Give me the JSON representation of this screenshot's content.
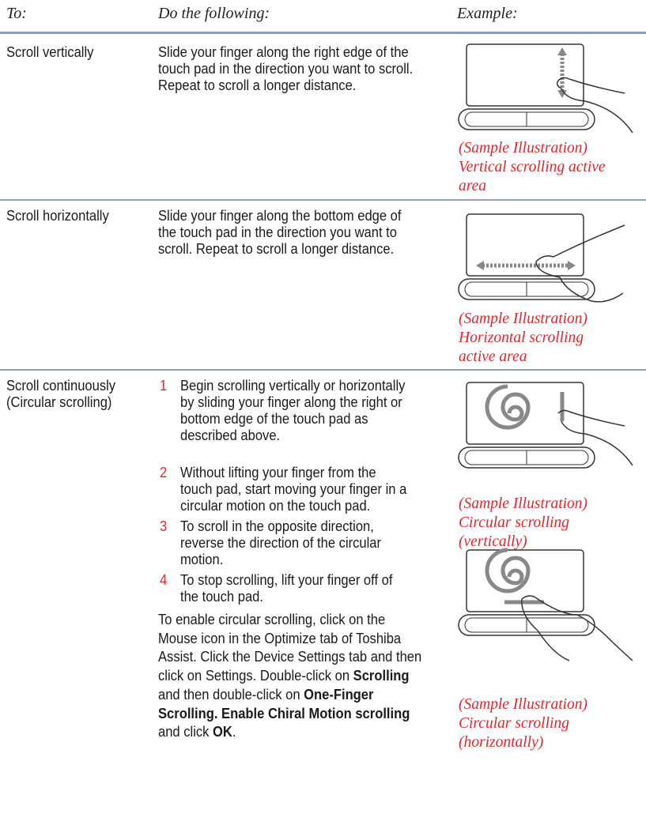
{
  "table": {
    "header": [
      "To:",
      "Do the following:",
      "Example:"
    ],
    "rows": [
      {
        "action": [
          "Scroll vertically"
        ],
        "description": [
          "Slide your finger along the right edge of the",
          "touch pad in the direction you want to scroll.",
          "Repeat to scroll a longer distance."
        ],
        "captions": [
          [
            "(Sample Illustration)",
            "Vertical scrolling active",
            "area"
          ]
        ]
      },
      {
        "action": [
          "Scroll horizontally"
        ],
        "description": [
          "Slide your finger along the bottom edge of",
          "the touch pad in the direction you want to",
          "scroll. Repeat to scroll a longer distance."
        ],
        "captions": [
          [
            "(Sample Illustration)",
            "Horizontal scrolling",
            "active area"
          ]
        ]
      },
      {
        "action": [
          "Scroll continuously",
          "(Circular scrolling)"
        ],
        "steps": [
          {
            "number": 1,
            "lines": [
              "Begin scrolling vertically or horizontally",
              "by sliding your finger along the right or",
              "bottom edge of the touch pad as",
              "described above."
            ]
          },
          {
            "number": 2,
            "lines": [
              "Without lifting your finger from the",
              "touch pad, start moving your finger in a",
              "circular motion on the touch pad."
            ]
          },
          {
            "number": 3,
            "lines": [
              "To scroll in the opposite direction,",
              "reverse the direction of the circular",
              "motion."
            ]
          },
          {
            "number": 4,
            "lines": [
              "To stop scrolling, lift your finger off of",
              "the touch pad."
            ]
          }
        ],
        "note": [
          [
            {
              "text": "To enable circular scrolling, click on the"
            }
          ],
          [
            {
              "text": "Mouse icon in the Optimize tab of Toshiba"
            }
          ],
          [
            {
              "text": "Assist. Click the Device Settings tab and then"
            }
          ],
          [
            {
              "text": "click on Settings. Double-click on "
            },
            {
              "text": "Scrolling",
              "bold": true
            }
          ],
          [
            {
              "text": "and then double-click on "
            },
            {
              "text": "One-Finger",
              "bold": true
            }
          ],
          [
            {
              "text": "Scrolling. Enable Chiral Motion scrolling",
              "bold": true
            }
          ],
          [
            {
              "text": "and click "
            },
            {
              "text": "OK",
              "bold": true
            },
            {
              "text": "."
            }
          ]
        ],
        "captions": [
          [
            "(Sample Illustration)",
            "Circular scrolling",
            "(vertically)"
          ],
          [
            "(Sample Illustration)",
            "Circular scrolling",
            "(horizontally)"
          ]
        ]
      }
    ]
  }
}
